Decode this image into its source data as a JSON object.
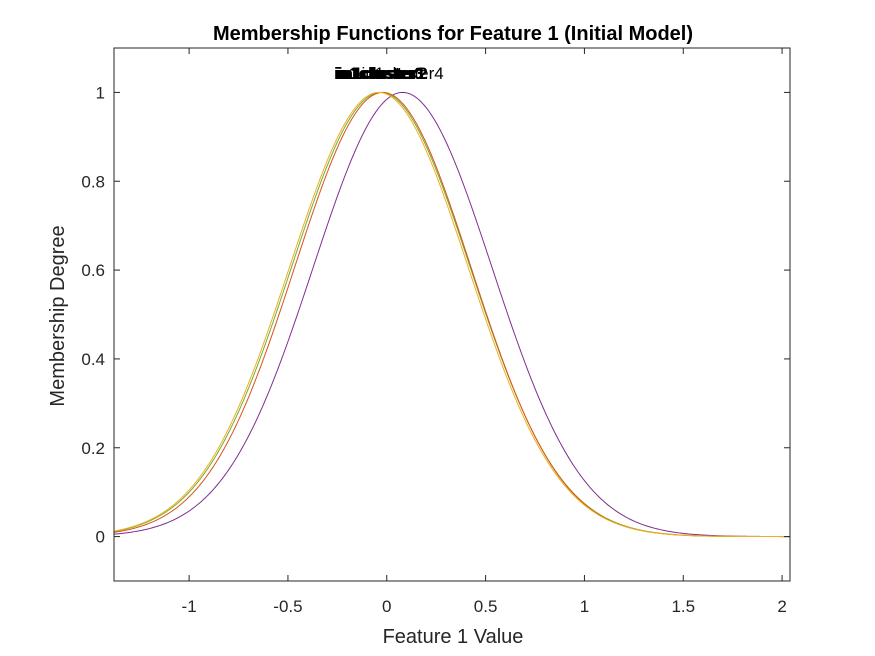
{
  "chart_data": {
    "type": "line",
    "title": "Membership Functions for Feature 1 (Initial Model)",
    "xlabel": "Feature 1 Value",
    "ylabel": "Membership Degree",
    "xlim": [
      -1.38,
      2.04
    ],
    "ylim": [
      -0.1,
      1.1
    ],
    "xticks": [
      -1,
      -0.5,
      0,
      0.5,
      1,
      1.5,
      2
    ],
    "xtick_labels": [
      "-1",
      "-0.5",
      "0",
      "0.5",
      "1",
      "1.5",
      "2"
    ],
    "yticks": [
      0,
      0.2,
      0.4,
      0.6,
      0.8,
      1
    ],
    "ytick_labels": [
      "0",
      "0.2",
      "0.4",
      "0.6",
      "0.8",
      "1"
    ],
    "grid": false,
    "legend": "none",
    "series": [
      {
        "name": "in1cluster1",
        "shape": "gaussmf",
        "center": -0.03,
        "sigma": 0.452,
        "color": "#77ac30",
        "label_bold": true
      },
      {
        "name": "in1cluster2",
        "shape": "gaussmf",
        "center": -0.02,
        "sigma": 0.446,
        "color": "#d95319",
        "label_bold": true
      },
      {
        "name": "in1cluster3",
        "shape": "gaussmf",
        "center": -0.04,
        "sigma": 0.452,
        "color": "#edb120",
        "label_bold": true
      },
      {
        "name": "in1cluster4",
        "shape": "gaussmf",
        "center": 0.08,
        "sigma": 0.452,
        "color": "#7e2f8e",
        "label_bold": false
      }
    ]
  }
}
